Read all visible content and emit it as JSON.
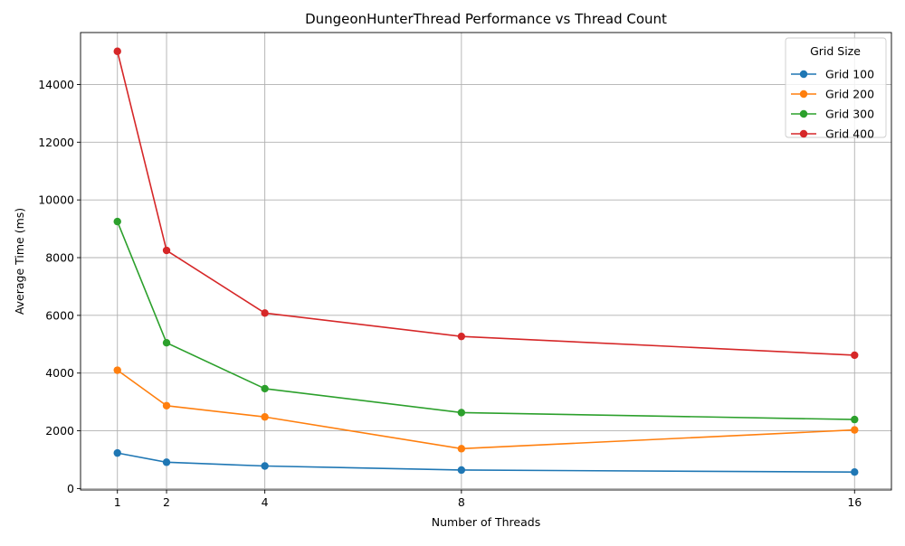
{
  "chart_data": {
    "type": "line",
    "title": "DungeonHunterThread Performance vs Thread Count",
    "xlabel": "Number of Threads",
    "ylabel": "Average Time (ms)",
    "x": [
      1,
      2,
      4,
      8,
      16
    ],
    "x_ticks": [
      "1",
      "2",
      "4",
      "8",
      "16"
    ],
    "y_ticks": [
      0,
      2000,
      4000,
      6000,
      8000,
      10000,
      12000,
      14000
    ],
    "xlim": [
      0.25,
      16.75
    ],
    "ylim": [
      -50,
      15800
    ],
    "grid": true,
    "legend": {
      "title": "Grid Size",
      "placement": "top-right"
    },
    "series": [
      {
        "name": "Grid 100",
        "color": "#1f77b4",
        "values": [
          1230,
          910,
          780,
          640,
          570
        ]
      },
      {
        "name": "Grid 200",
        "color": "#ff7f0e",
        "values": [
          4100,
          2870,
          2480,
          1380,
          2030
        ]
      },
      {
        "name": "Grid 300",
        "color": "#2ca02c",
        "values": [
          9250,
          5050,
          3460,
          2630,
          2390
        ]
      },
      {
        "name": "Grid 400",
        "color": "#d62728",
        "values": [
          15150,
          8250,
          6080,
          5270,
          4620
        ]
      }
    ]
  }
}
